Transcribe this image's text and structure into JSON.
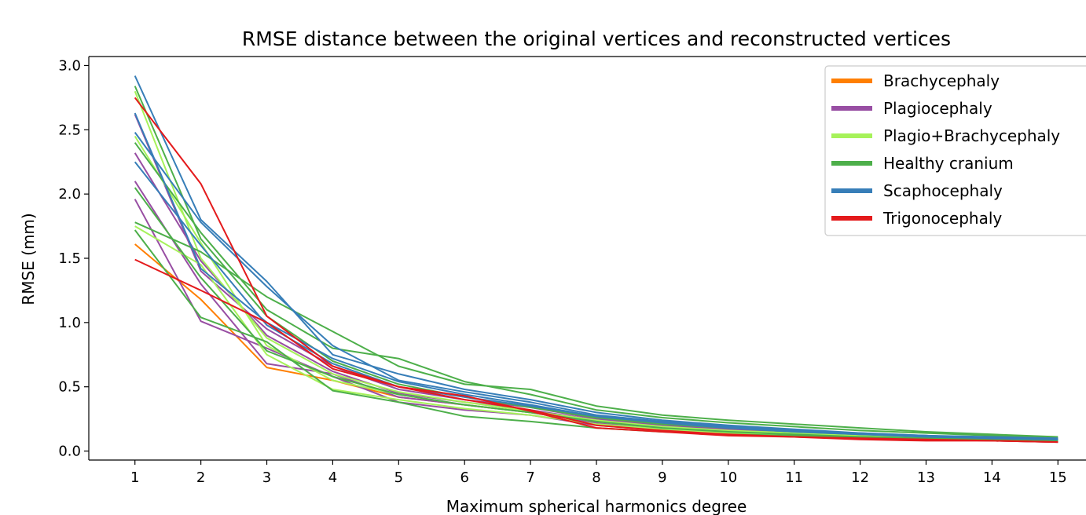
{
  "chart_data": {
    "type": "line",
    "title": "RMSE distance between the original vertices and reconstructed vertices",
    "xlabel": "Maximum spherical harmonics degree",
    "ylabel": "RMSE (mm)",
    "x": [
      1,
      2,
      3,
      4,
      5,
      6,
      7,
      8,
      9,
      10,
      11,
      12,
      13,
      14,
      15
    ],
    "xlim": [
      0.3,
      15.7
    ],
    "ylim": [
      -0.07,
      3.07
    ],
    "yticks": [
      0.0,
      0.5,
      1.0,
      1.5,
      2.0,
      2.5,
      3.0
    ],
    "ytick_labels": [
      "0.0",
      "0.5",
      "1.0",
      "1.5",
      "2.0",
      "2.5",
      "3.0"
    ],
    "xtick_labels": [
      "1",
      "2",
      "3",
      "4",
      "5",
      "6",
      "7",
      "8",
      "9",
      "10",
      "11",
      "12",
      "13",
      "14",
      "15"
    ],
    "grid": false,
    "legend_position": "top-right",
    "legend": [
      {
        "label": "Brachycephaly",
        "color": "#ff7f00"
      },
      {
        "label": "Plagiocephaly",
        "color": "#984ea3"
      },
      {
        "label": "Plagio+Brachycephaly",
        "color": "#a6f25a"
      },
      {
        "label": "Healthy cranium",
        "color": "#4daf4a"
      },
      {
        "label": "Scaphocephaly",
        "color": "#377eb8"
      },
      {
        "label": "Trigonocephaly",
        "color": "#e41a1c"
      }
    ],
    "series": [
      {
        "color": "#ff7f00",
        "values": [
          1.61,
          1.18,
          0.65,
          0.55,
          0.42,
          0.36,
          0.3,
          0.22,
          0.18,
          0.15,
          0.13,
          0.11,
          0.1,
          0.09,
          0.08
        ]
      },
      {
        "color": "#984ea3",
        "values": [
          1.96,
          1.01,
          0.8,
          0.58,
          0.38,
          0.32,
          0.28,
          0.2,
          0.16,
          0.14,
          0.12,
          0.1,
          0.09,
          0.08,
          0.07
        ]
      },
      {
        "color": "#984ea3",
        "values": [
          2.1,
          1.3,
          0.68,
          0.6,
          0.42,
          0.36,
          0.3,
          0.22,
          0.18,
          0.15,
          0.13,
          0.11,
          0.1,
          0.09,
          0.08
        ]
      },
      {
        "color": "#984ea3",
        "values": [
          2.32,
          1.48,
          0.9,
          0.62,
          0.45,
          0.38,
          0.32,
          0.24,
          0.19,
          0.16,
          0.14,
          0.12,
          0.1,
          0.09,
          0.08
        ]
      },
      {
        "color": "#984ea3",
        "values": [
          2.62,
          1.4,
          0.95,
          0.66,
          0.48,
          0.4,
          0.34,
          0.25,
          0.2,
          0.17,
          0.14,
          0.12,
          0.11,
          0.1,
          0.09
        ]
      },
      {
        "color": "#a6f25a",
        "values": [
          1.75,
          1.45,
          0.75,
          0.48,
          0.4,
          0.33,
          0.28,
          0.21,
          0.17,
          0.14,
          0.12,
          0.11,
          0.1,
          0.09,
          0.08
        ]
      },
      {
        "color": "#a6f25a",
        "values": [
          2.45,
          1.62,
          0.82,
          0.55,
          0.44,
          0.36,
          0.3,
          0.23,
          0.18,
          0.15,
          0.13,
          0.11,
          0.1,
          0.09,
          0.08
        ]
      },
      {
        "color": "#a6f25a",
        "values": [
          2.8,
          1.5,
          0.88,
          0.6,
          0.46,
          0.38,
          0.31,
          0.24,
          0.19,
          0.16,
          0.14,
          0.12,
          0.1,
          0.09,
          0.08
        ]
      },
      {
        "color": "#4daf4a",
        "values": [
          1.72,
          1.04,
          0.85,
          0.47,
          0.38,
          0.27,
          0.23,
          0.18,
          0.15,
          0.13,
          0.12,
          0.11,
          0.1,
          0.09,
          0.09
        ]
      },
      {
        "color": "#4daf4a",
        "values": [
          1.78,
          1.55,
          1.2,
          0.93,
          0.66,
          0.52,
          0.48,
          0.35,
          0.28,
          0.24,
          0.21,
          0.18,
          0.15,
          0.13,
          0.11
        ]
      },
      {
        "color": "#4daf4a",
        "values": [
          2.4,
          1.7,
          1.1,
          0.8,
          0.72,
          0.54,
          0.44,
          0.32,
          0.26,
          0.22,
          0.19,
          0.16,
          0.14,
          0.12,
          0.1
        ]
      },
      {
        "color": "#4daf4a",
        "values": [
          2.84,
          1.65,
          1.05,
          0.7,
          0.52,
          0.42,
          0.34,
          0.26,
          0.21,
          0.18,
          0.15,
          0.13,
          0.12,
          0.1,
          0.09
        ]
      },
      {
        "color": "#4daf4a",
        "values": [
          2.05,
          1.35,
          0.78,
          0.58,
          0.44,
          0.36,
          0.3,
          0.23,
          0.18,
          0.15,
          0.13,
          0.11,
          0.1,
          0.09,
          0.08
        ]
      },
      {
        "color": "#377eb8",
        "values": [
          2.92,
          1.8,
          1.32,
          0.75,
          0.6,
          0.48,
          0.4,
          0.3,
          0.24,
          0.2,
          0.17,
          0.14,
          0.12,
          0.11,
          0.1
        ]
      },
      {
        "color": "#377eb8",
        "values": [
          2.48,
          1.78,
          1.28,
          0.82,
          0.55,
          0.46,
          0.38,
          0.28,
          0.23,
          0.19,
          0.16,
          0.14,
          0.12,
          0.1,
          0.09
        ]
      },
      {
        "color": "#377eb8",
        "values": [
          2.25,
          1.6,
          0.98,
          0.68,
          0.5,
          0.42,
          0.35,
          0.27,
          0.22,
          0.18,
          0.15,
          0.13,
          0.11,
          0.1,
          0.09
        ]
      },
      {
        "color": "#377eb8",
        "values": [
          2.63,
          1.42,
          1.0,
          0.72,
          0.54,
          0.44,
          0.36,
          0.27,
          0.22,
          0.18,
          0.16,
          0.13,
          0.12,
          0.1,
          0.09
        ]
      },
      {
        "color": "#e41a1c",
        "values": [
          1.49,
          1.25,
          1.0,
          0.64,
          0.5,
          0.43,
          0.31,
          0.18,
          0.15,
          0.12,
          0.11,
          0.09,
          0.08,
          0.08,
          0.07
        ]
      },
      {
        "color": "#e41a1c",
        "values": [
          2.75,
          2.08,
          1.05,
          0.66,
          0.5,
          0.4,
          0.32,
          0.2,
          0.16,
          0.13,
          0.11,
          0.1,
          0.09,
          0.08,
          0.07
        ]
      }
    ]
  }
}
